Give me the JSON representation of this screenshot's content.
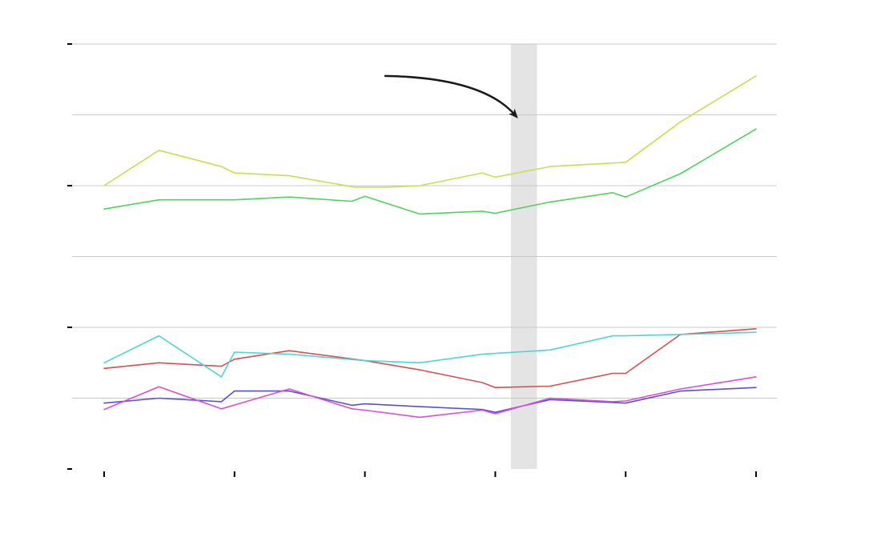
{
  "chart_data": {
    "type": "line",
    "title": "",
    "xlabel": "",
    "ylabel": "",
    "xlim": [
      0,
      5
    ],
    "ylim": [
      0,
      6
    ],
    "x_ticks": [
      0,
      1,
      2,
      3,
      4,
      5
    ],
    "y_ticks": [
      0,
      2,
      4,
      6
    ],
    "y_gridlines": [
      1,
      2,
      3,
      4,
      5,
      6
    ],
    "tick_labels_visible": false,
    "grid": true,
    "legend": "none",
    "shaded_band": {
      "x_start": 3.12,
      "x_end": 3.32,
      "color": "#e4e4e4"
    },
    "annotation": {
      "type": "curved-arrow",
      "from": [
        2.15,
        5.55
      ],
      "to": [
        3.15,
        5.0
      ],
      "color": "#1a1a1a"
    },
    "series": [
      {
        "color": "#cddc50",
        "x": [
          0,
          0.42,
          0.9,
          1.0,
          1.42,
          1.92,
          2.18,
          2.42,
          2.9,
          3.0,
          3.42,
          4.0,
          4.42,
          5.0
        ],
        "y": [
          4.0,
          4.5,
          4.27,
          4.18,
          4.14,
          3.98,
          3.98,
          4.0,
          4.18,
          4.12,
          4.27,
          4.33,
          4.9,
          5.55
        ]
      },
      {
        "color": "#4fd35e",
        "x": [
          0,
          0.42,
          1.0,
          1.42,
          1.9,
          2.0,
          2.42,
          2.9,
          3.0,
          3.42,
          3.9,
          4.0,
          4.42,
          5.0
        ],
        "y": [
          3.67,
          3.8,
          3.8,
          3.84,
          3.78,
          3.85,
          3.6,
          3.64,
          3.61,
          3.77,
          3.9,
          3.84,
          4.17,
          4.8
        ]
      },
      {
        "color": "#d65050",
        "x": [
          0,
          0.42,
          0.9,
          1.0,
          1.42,
          2.0,
          2.42,
          2.9,
          3.0,
          3.42,
          3.9,
          4.0,
          4.42,
          5.0
        ],
        "y": [
          1.42,
          1.5,
          1.45,
          1.55,
          1.67,
          1.53,
          1.4,
          1.22,
          1.15,
          1.17,
          1.35,
          1.35,
          1.9,
          1.98
        ]
      },
      {
        "color": "#4dd6d6",
        "x": [
          0,
          0.42,
          0.9,
          1.0,
          1.42,
          2.0,
          2.42,
          2.9,
          3.42,
          3.9,
          4.0,
          4.42,
          5.0
        ],
        "y": [
          1.5,
          1.88,
          1.3,
          1.65,
          1.62,
          1.53,
          1.5,
          1.62,
          1.68,
          1.88,
          1.88,
          1.9,
          1.93
        ]
      },
      {
        "color": "#5a4fd6",
        "x": [
          0,
          0.42,
          0.9,
          1.0,
          1.42,
          1.9,
          2.0,
          2.42,
          2.9,
          3.0,
          3.42,
          4.0,
          4.42,
          5.0
        ],
        "y": [
          0.93,
          1.0,
          0.95,
          1.1,
          1.1,
          0.9,
          0.92,
          0.88,
          0.84,
          0.8,
          0.98,
          0.93,
          1.1,
          1.15
        ]
      },
      {
        "color": "#d94fd6",
        "x": [
          0,
          0.42,
          0.9,
          1.42,
          1.9,
          2.0,
          2.42,
          2.9,
          3.0,
          3.42,
          3.9,
          4.0,
          4.42,
          5.0
        ],
        "y": [
          0.84,
          1.16,
          0.85,
          1.13,
          0.85,
          0.83,
          0.73,
          0.83,
          0.78,
          1.0,
          0.95,
          0.96,
          1.13,
          1.3
        ]
      }
    ]
  }
}
